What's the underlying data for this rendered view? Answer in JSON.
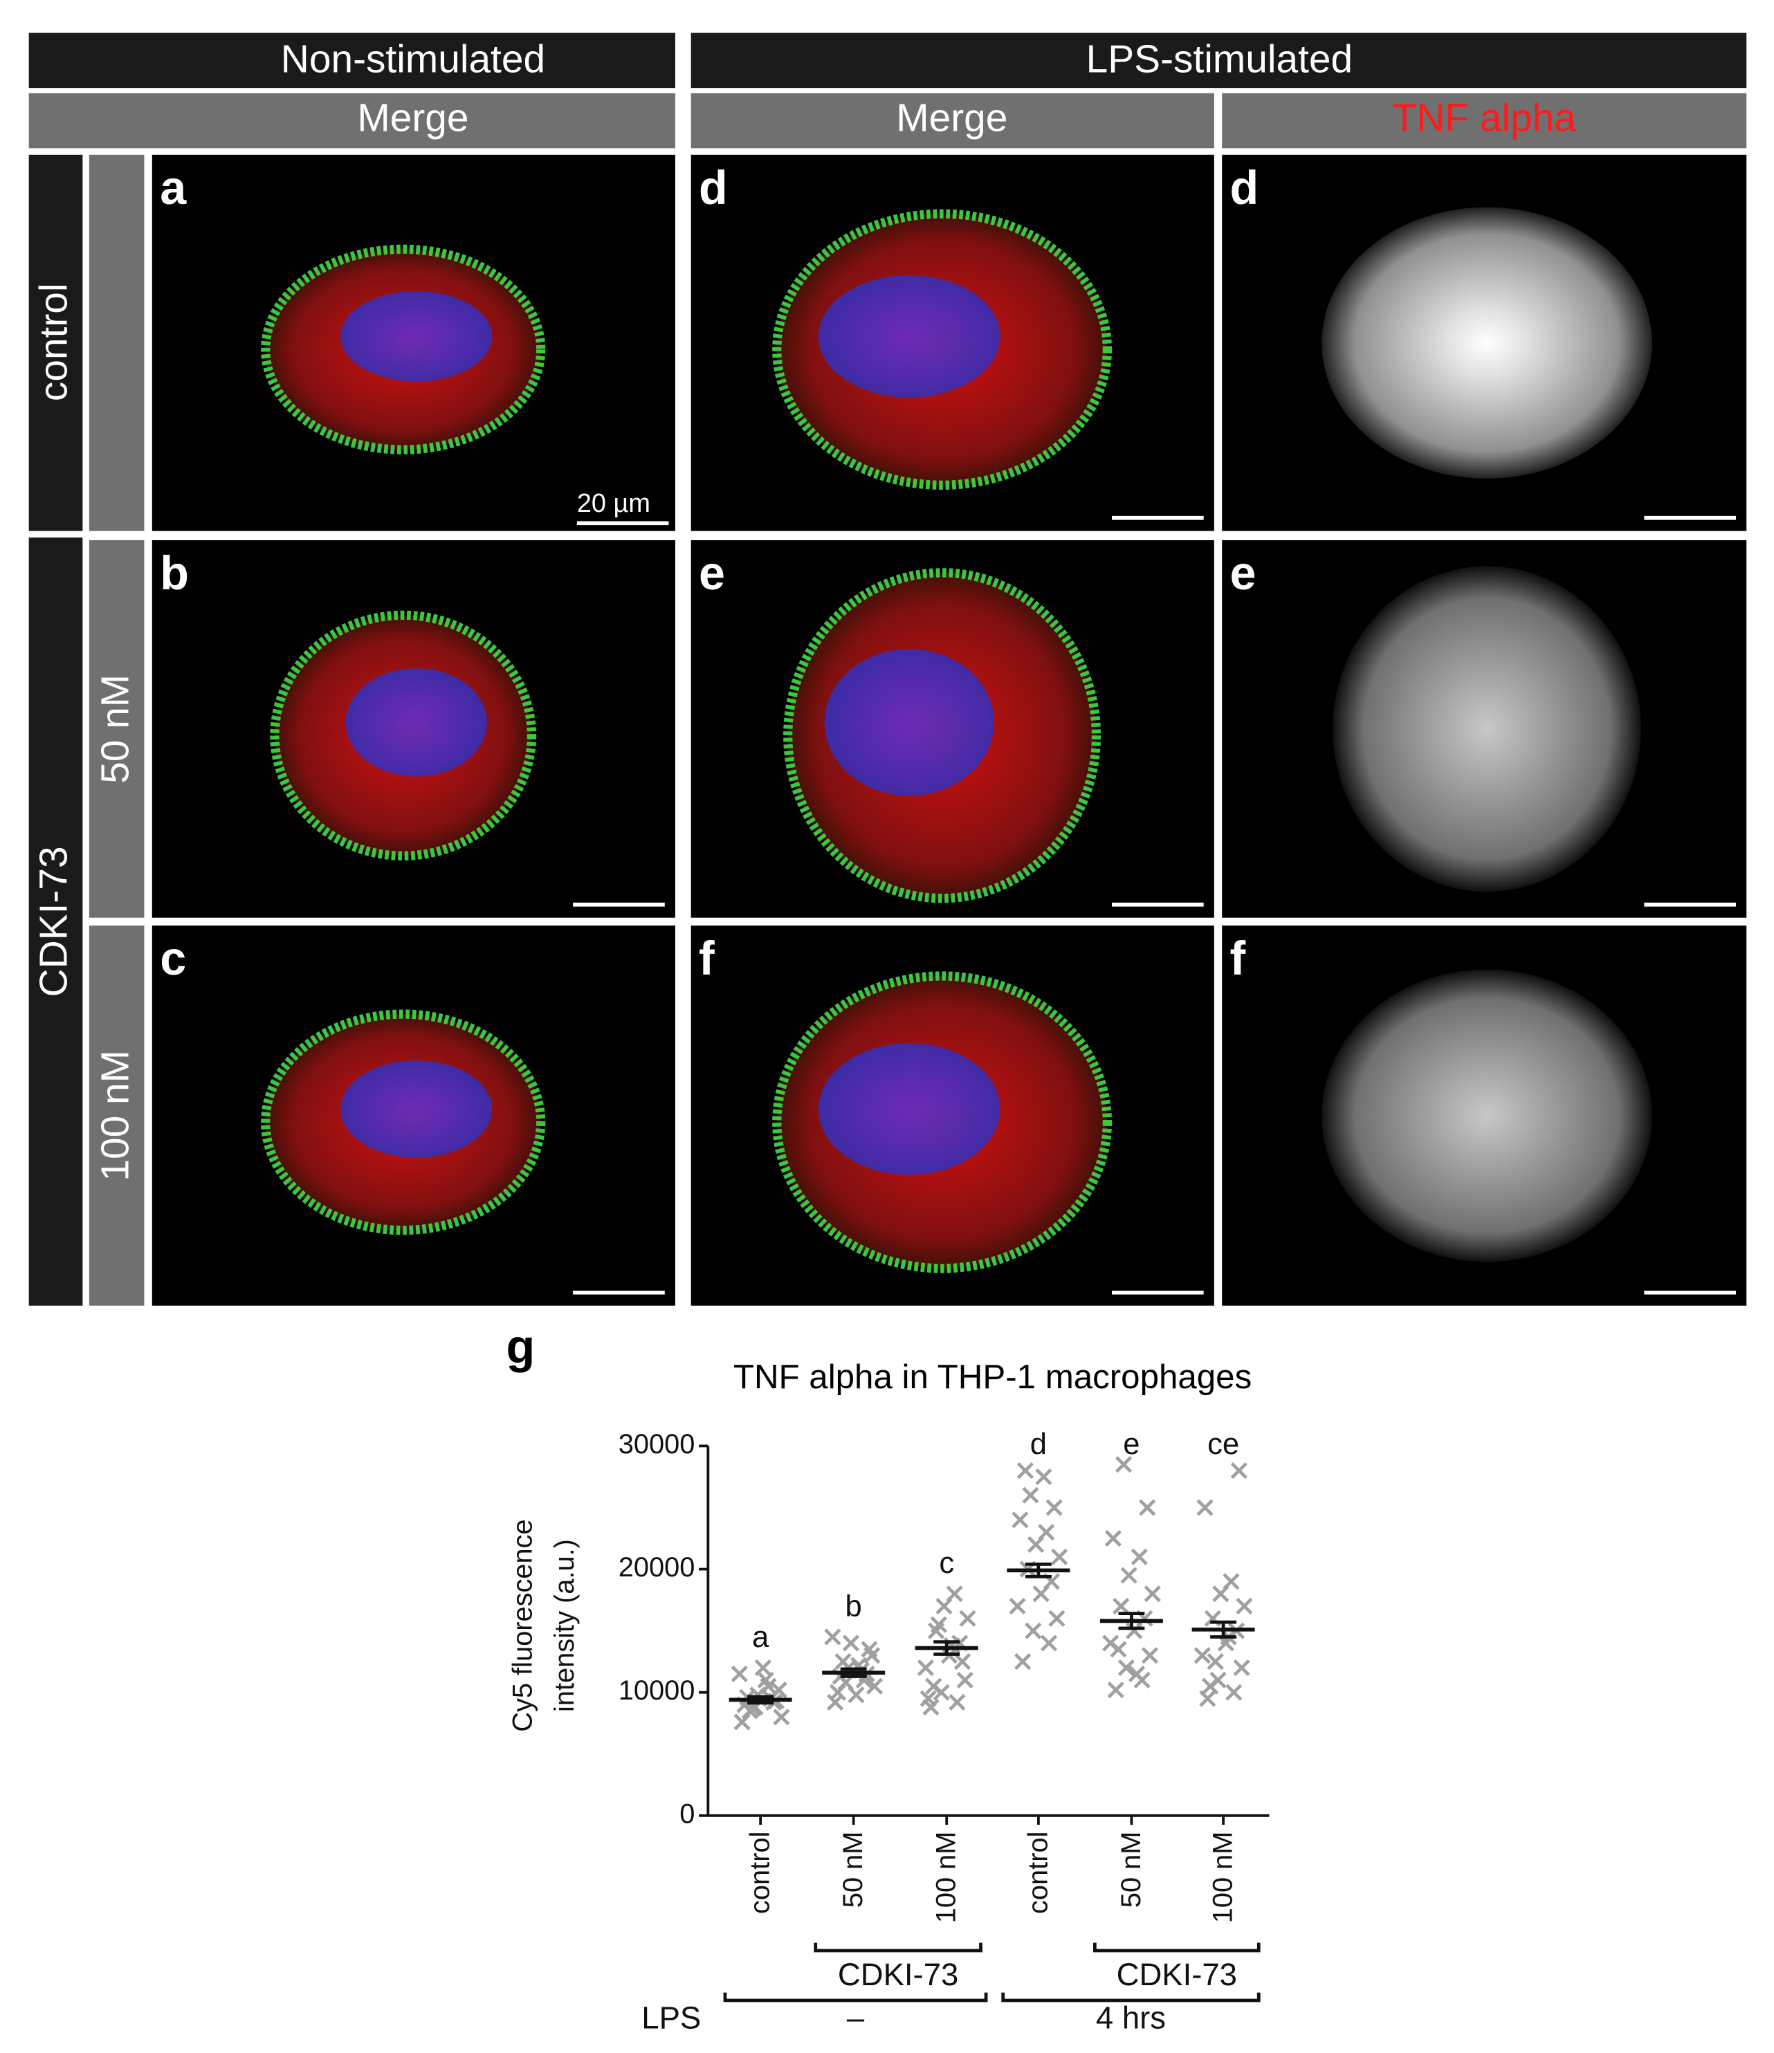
{
  "figure": {
    "columns_top": [
      "Non-stimulated",
      "LPS-stimulated"
    ],
    "columns_sub": [
      "Merge",
      "Merge",
      "TNF alpha"
    ],
    "rows_outer": [
      "control",
      "CDKI-73"
    ],
    "rows_inner": [
      "50 nM",
      "100 nM"
    ],
    "panel_letters": [
      "a",
      "b",
      "c",
      "d",
      "e",
      "f"
    ],
    "scale_bar": "20 µm"
  },
  "chart_data": {
    "type": "dotplot",
    "panel_letter": "g",
    "title": "TNF alpha in THP-1 macrophages",
    "ylabel": [
      "Cy5 fluorescence",
      "intensity (a.u.)"
    ],
    "categories": [
      "control",
      "50 nM",
      "100 nM",
      "control",
      "50 nM",
      "100 nM"
    ],
    "significance": [
      "a",
      "b",
      "c",
      "d",
      "e",
      "ce"
    ],
    "brackets": [
      "CDKI-73",
      "CDKI-73"
    ],
    "group_axis": "LPS",
    "groups": [
      "–",
      "4 hrs"
    ],
    "color": "#a0a0a0",
    "mean_color": "#111111",
    "points": [
      [
        9000,
        9500,
        8800,
        10200,
        11500,
        12000,
        9200,
        8500,
        8000,
        9800,
        10500,
        7600,
        9300,
        8700,
        11000,
        9600
      ],
      [
        10000,
        11000,
        12000,
        13000,
        14500,
        9800,
        11500,
        12500,
        10500,
        14000,
        11800,
        9200,
        13500,
        10800,
        12200,
        11300
      ],
      [
        8800,
        9200,
        10000,
        11000,
        12000,
        13000,
        14000,
        15000,
        16000,
        17000,
        18000,
        9500,
        12500,
        15500,
        13800,
        10500
      ],
      [
        12500,
        14000,
        15000,
        16000,
        17000,
        18000,
        19000,
        20000,
        21000,
        22000,
        23000,
        24000,
        25000,
        26000,
        27500,
        28000
      ],
      [
        10200,
        11000,
        12000,
        13000,
        14000,
        15000,
        16000,
        17000,
        18000,
        19500,
        21000,
        22500,
        25000,
        28500,
        11500,
        13500
      ],
      [
        9500,
        10000,
        11000,
        12000,
        13000,
        14000,
        15000,
        16000,
        17000,
        18000,
        19000,
        25000,
        28000,
        12500,
        14500,
        10500
      ]
    ],
    "means": [
      9400,
      11600,
      13600,
      19900,
      15800,
      15100
    ],
    "errors": [
      250,
      300,
      500,
      500,
      600,
      600
    ],
    "ylim": [
      0,
      30000
    ],
    "yticks": [
      0,
      10000,
      20000,
      30000
    ]
  }
}
